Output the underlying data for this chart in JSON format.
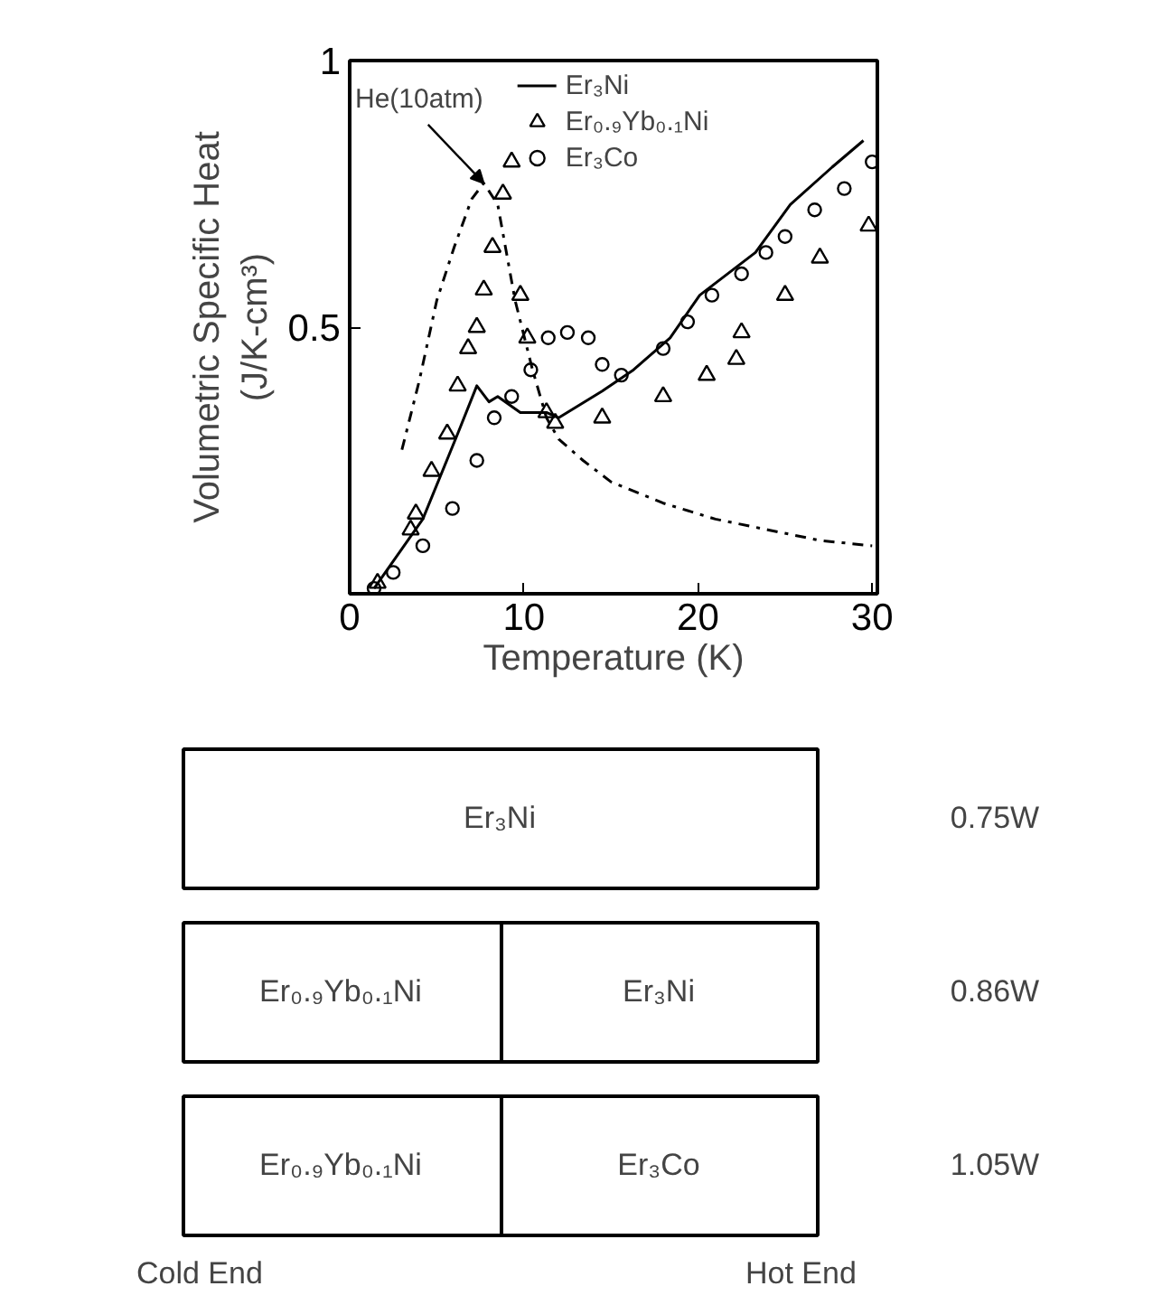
{
  "chart_data": [
    {
      "type": "line",
      "xlabel": "Temperature (K)",
      "ylabel": "Volumetric Specific Heat\n(J/K-cm³)",
      "xlim": [
        0,
        30.3
      ],
      "ylim": [
        0,
        1
      ],
      "xticks": [
        0,
        10,
        20,
        30
      ],
      "yticks": [
        {
          "value": 0,
          "label": null
        },
        0.5,
        1
      ],
      "legend": "top",
      "grid": false,
      "series": [
        {
          "type": "line",
          "color": "#000000",
          "line_style": "dashed",
          "x": [
            3,
            4,
            5,
            6,
            7,
            7.7,
            8.5,
            9.5,
            10.5,
            11.3,
            12,
            13.4,
            15,
            18,
            21,
            24,
            27,
            30
          ],
          "values": [
            0.27,
            0.4,
            0.55,
            0.65,
            0.74,
            0.77,
            0.73,
            0.55,
            0.42,
            0.33,
            0.29,
            0.25,
            0.21,
            0.17,
            0.14,
            0.12,
            0.1,
            0.09
          ]
        },
        {
          "type": "line",
          "name": "Er₃Ni",
          "color": "#000000",
          "line_style": "solid",
          "x": [
            1.4,
            4.2,
            6.2,
            7.3,
            8,
            8.5,
            9.8,
            11.3,
            12,
            14.5,
            16.3,
            18.4,
            20.1,
            23.3,
            25.3,
            27.7,
            29.5
          ],
          "values": [
            0.01,
            0.14,
            0.3,
            0.39,
            0.36,
            0.37,
            0.34,
            0.34,
            0.33,
            0.38,
            0.42,
            0.48,
            0.56,
            0.64,
            0.73,
            0.8,
            0.85
          ]
        },
        {
          "type": "scatter",
          "name": "Er₀.₉Yb₀.₁Ni",
          "color": "#000000",
          "marker": "triangle",
          "x": [
            1.6,
            3.5,
            3.8,
            4.7,
            5.6,
            6.2,
            6.8,
            7.3,
            7.7,
            8.2,
            8.8,
            9.3,
            9.8,
            10.2,
            11.3,
            11.8,
            14.5,
            18,
            20.5,
            22.2,
            22.5,
            25,
            27,
            29.8
          ],
          "values": [
            0.02,
            0.12,
            0.15,
            0.23,
            0.3,
            0.39,
            0.46,
            0.5,
            0.57,
            0.65,
            0.75,
            0.81,
            0.56,
            0.48,
            0.34,
            0.32,
            0.33,
            0.37,
            0.41,
            0.44,
            0.49,
            0.56,
            0.63,
            0.69
          ]
        },
        {
          "type": "scatter",
          "name": "Er₃Co",
          "color": "#000000",
          "marker": "circle",
          "x": [
            1.4,
            2.5,
            4.2,
            5.9,
            7.3,
            8.3,
            9.3,
            10.4,
            11.4,
            12.5,
            13.7,
            14.5,
            15.6,
            18,
            19.4,
            20.8,
            22.5,
            23.9,
            25,
            26.7,
            28.4,
            30
          ],
          "values": [
            0.01,
            0.04,
            0.09,
            0.16,
            0.25,
            0.33,
            0.37,
            0.42,
            0.48,
            0.49,
            0.48,
            0.43,
            0.41,
            0.46,
            0.51,
            0.56,
            0.6,
            0.64,
            0.67,
            0.72,
            0.76,
            0.81
          ]
        }
      ],
      "annotations": [
        {
          "text": "He(10atm)",
          "x": 7.7,
          "y": 0.77
        }
      ]
    },
    {
      "type": "other",
      "annotations": [
        "Er₃Ni",
        "0.75W",
        "Er₀.₉Yb₀.₁Ni",
        "Er₃Ni",
        "0.86W",
        "Er₀.₉Yb₀.₁Ni",
        "Er₃Co",
        "1.05W",
        "Cold End",
        "Hot End"
      ]
    }
  ]
}
